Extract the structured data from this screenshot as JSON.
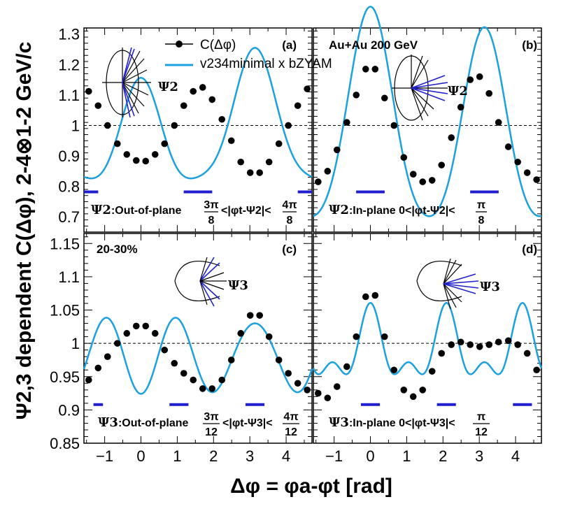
{
  "chart_data": {
    "type": "line",
    "ylabel": "Ψ2,3 dependent C(Δφ), 2-4⊗1-2 GeV/c",
    "xlabel": "Δφ = φa-φt [rad]",
    "x_ticks": [
      -1,
      0,
      1,
      2,
      3,
      4
    ],
    "xlim": [
      -1.571,
      4.712
    ],
    "legend": {
      "points_label": "C(Δφ)",
      "curve_label": "v234minimal x bZYAM",
      "placement": "top-left of panel (a)"
    },
    "colors": {
      "curve": "#1ba0e0",
      "points": "#000000",
      "bars": "#1f1fd0",
      "baseline": "#000000"
    },
    "panels": [
      {
        "id": "a",
        "tag": "(a)",
        "caption_psi": "Ψ2",
        "caption_text": ":Out-of-plane",
        "range_num_low": "3π",
        "range_den_low": "8",
        "range_mid": "<|φt-Ψ2|<",
        "range_num_high": "4π",
        "range_den_high": "8",
        "plane_label": "Ψ2",
        "ylim": [
          0.65,
          1.32
        ],
        "y_ticks": [
          0.7,
          0.8,
          0.9,
          1.0,
          1.1,
          1.2,
          1.3
        ],
        "y_tick_labels": [
          "0.7",
          "0.8",
          "0.9",
          "1",
          "1.1",
          "1.2",
          "1.3"
        ],
        "bar_y": 0.782,
        "bars": [
          [
            -1.571,
            -1.178
          ],
          [
            1.178,
            1.963
          ],
          [
            4.32,
            4.712
          ]
        ],
        "points": {
          "x": [
            -1.44,
            -1.18,
            -0.92,
            -0.65,
            -0.39,
            -0.13,
            0.13,
            0.39,
            0.65,
            0.92,
            1.18,
            1.44,
            1.7,
            1.96,
            2.23,
            2.49,
            2.75,
            3.01,
            3.27,
            3.53,
            3.8,
            4.06,
            4.32,
            4.58
          ],
          "y": [
            1.112,
            1.065,
            1.0,
            0.94,
            0.905,
            0.885,
            0.883,
            0.905,
            0.94,
            1.0,
            1.065,
            1.112,
            1.125,
            1.085,
            1.02,
            0.95,
            0.88,
            0.845,
            0.845,
            0.88,
            0.94,
            1.0,
            1.065,
            1.12
          ]
        },
        "curve": {
          "baseline": 0.985,
          "a1": -0.025,
          "a2": 0.095,
          "a3": 0.0,
          "a4": 0.017,
          "a5": 0.0,
          "a6": 0.0
        }
      },
      {
        "id": "b",
        "tag": "(b)",
        "header": "Au+Au 200 GeV",
        "caption_psi": "Ψ2",
        "caption_text": ":In-plane 0<|φt-Ψ2|<",
        "range_num_high": "π",
        "range_den_high": "8",
        "plane_label": "Ψ2",
        "ylim": [
          0.65,
          1.32
        ],
        "bar_y": 0.782,
        "bars": [
          [
            -0.393,
            0.393
          ],
          [
            2.749,
            3.534
          ]
        ],
        "points": {
          "x": [
            -1.44,
            -1.18,
            -0.92,
            -0.65,
            -0.39,
            -0.13,
            0.13,
            0.39,
            0.65,
            0.92,
            1.18,
            1.44,
            1.7,
            1.96,
            2.23,
            2.49,
            2.75,
            3.01,
            3.27,
            3.53,
            3.8,
            4.06,
            4.32,
            4.58
          ],
          "y": [
            0.815,
            0.85,
            0.92,
            1.01,
            1.1,
            1.185,
            1.185,
            1.09,
            1.0,
            0.895,
            0.84,
            0.815,
            0.82,
            0.87,
            0.96,
            1.06,
            1.15,
            1.16,
            1.105,
            1.01,
            0.93,
            0.88,
            0.845,
            0.822
          ]
        },
        "curve": {
          "baseline": 0.99,
          "a1": 0.017,
          "a2": 0.165,
          "a3": 0.0,
          "a4": 0.02,
          "a5": 0.0,
          "a6": 0.0
        }
      },
      {
        "id": "c",
        "tag": "(c)",
        "header": "20-30%",
        "caption_psi": "Ψ3",
        "caption_text": ":Out-of-plane",
        "range_num_low": "3π",
        "range_den_low": "12",
        "range_mid": "<|φt-Ψ3|<",
        "range_num_high": "4π",
        "range_den_high": "12",
        "plane_label": "Ψ3",
        "ylim": [
          0.85,
          1.165
        ],
        "y_ticks": [
          0.85,
          0.9,
          0.95,
          1.0,
          1.05,
          1.1,
          1.15
        ],
        "y_tick_labels": [
          "0.85",
          "0.9",
          "0.95",
          "1",
          "1.05",
          "1.1",
          "1.15"
        ],
        "bar_y": 0.908,
        "bars": [
          [
            -1.309,
            -1.047
          ],
          [
            0.785,
            1.309
          ],
          [
            2.88,
            3.403
          ]
        ],
        "points": {
          "x": [
            -1.44,
            -1.18,
            -0.92,
            -0.65,
            -0.39,
            -0.13,
            0.13,
            0.39,
            0.65,
            0.92,
            1.18,
            1.44,
            1.7,
            1.96,
            2.23,
            2.49,
            2.75,
            3.01,
            3.27,
            3.53,
            3.8,
            4.06,
            4.32,
            4.58
          ],
          "y": [
            0.945,
            0.963,
            0.98,
            1.0,
            1.015,
            1.026,
            1.026,
            1.015,
            0.99,
            0.97,
            0.955,
            0.945,
            0.932,
            0.932,
            0.945,
            0.975,
            1.015,
            1.042,
            1.042,
            1.01,
            0.975,
            0.955,
            0.94,
            0.93
          ]
        },
        "curve": {
          "baseline": 0.981,
          "a1": 0.0,
          "a2": 0.004,
          "a3": -0.027,
          "a4": -0.006,
          "a5": 0.0,
          "a6": 0.0
        }
      },
      {
        "id": "d",
        "tag": "(d)",
        "caption_psi": "Ψ3",
        "caption_text": ":In-plane 0<|φt-Ψ3|<",
        "range_num_high": "π",
        "range_den_high": "12",
        "plane_label": "Ψ3",
        "ylim": [
          0.85,
          1.165
        ],
        "bar_y": 0.908,
        "bars": [
          [
            -0.262,
            0.262
          ],
          [
            1.833,
            2.356
          ],
          [
            3.927,
            4.451
          ]
        ],
        "points": {
          "x": [
            -1.44,
            -1.18,
            -0.92,
            -0.65,
            -0.39,
            -0.13,
            0.13,
            0.39,
            0.65,
            0.92,
            1.18,
            1.44,
            1.7,
            1.96,
            2.23,
            2.49,
            2.75,
            3.01,
            3.27,
            3.53,
            3.8,
            4.06,
            4.32,
            4.58
          ],
          "y": [
            0.925,
            0.918,
            0.935,
            0.965,
            1.01,
            1.07,
            1.072,
            1.01,
            0.96,
            0.93,
            0.92,
            0.93,
            0.958,
            0.985,
            0.998,
            1.002,
            0.998,
            0.995,
            0.998,
            1.002,
            1.004,
            0.998,
            0.985,
            0.96
          ]
        },
        "curve": {
          "baseline": 0.9895,
          "a1": 0.0,
          "a2": 0.0,
          "a3": 0.0225,
          "a4": 0.0,
          "a5": 0.0,
          "a6": 0.0135
        }
      }
    ]
  }
}
